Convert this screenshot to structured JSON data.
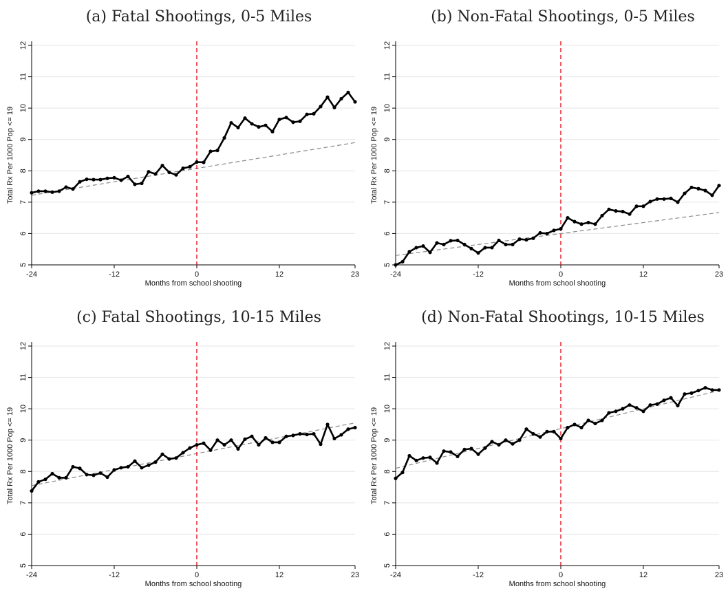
{
  "figure": {
    "xlabel": "Months from school shooting",
    "ylabel": "Total Rx Per 1000 Pop <= 19",
    "x_ticks": [
      -24,
      -12,
      0,
      12,
      23
    ],
    "y_ticks": [
      5,
      6,
      7,
      8,
      9,
      10,
      11,
      12
    ],
    "colors": {
      "series": "#000000",
      "trend": "#888888",
      "event_line": "#e8000b",
      "grid": "#e4e4e4"
    }
  },
  "chart_data": [
    {
      "type": "line",
      "title": "(a) Fatal Shootings, 0-5 Miles",
      "xlabel": "Months from school shooting",
      "ylabel": "Total Rx Per 1000 Pop <= 19",
      "xlim": [
        -24,
        23
      ],
      "ylim": [
        5,
        12
      ],
      "grid": true,
      "event_x": 0,
      "x": [
        -24,
        -23,
        -22,
        -21,
        -20,
        -19,
        -18,
        -17,
        -16,
        -15,
        -14,
        -13,
        -12,
        -11,
        -10,
        -9,
        -8,
        -7,
        -6,
        -5,
        -4,
        -3,
        -2,
        -1,
        0,
        1,
        2,
        3,
        4,
        5,
        6,
        7,
        8,
        9,
        10,
        11,
        12,
        13,
        14,
        15,
        16,
        17,
        18,
        19,
        20,
        21,
        22,
        23
      ],
      "series": [
        {
          "values": [
            7.3,
            7.35,
            7.35,
            7.32,
            7.35,
            7.48,
            7.42,
            7.65,
            7.73,
            7.72,
            7.72,
            7.76,
            7.78,
            7.7,
            7.82,
            7.57,
            7.6,
            7.97,
            7.9,
            8.17,
            7.95,
            7.87,
            8.08,
            8.13,
            8.28,
            8.27,
            8.62,
            8.65,
            9.05,
            9.53,
            9.38,
            9.68,
            9.5,
            9.4,
            9.45,
            9.25,
            9.64,
            9.7,
            9.55,
            9.58,
            9.8,
            9.82,
            10.05,
            10.35,
            10.02,
            10.3,
            10.5,
            10.2
          ]
        }
      ],
      "trend": {
        "x": [
          -24,
          23
        ],
        "y": [
          7.22,
          8.9
        ]
      }
    },
    {
      "type": "line",
      "title": "(b) Non-Fatal Shootings, 0-5 Miles",
      "xlabel": "Months from school shooting",
      "ylabel": "Total Rx Per 1000 Pop <= 19",
      "xlim": [
        -24,
        23
      ],
      "ylim": [
        5,
        12
      ],
      "grid": true,
      "event_x": 0,
      "x": [
        -24,
        -23,
        -22,
        -21,
        -20,
        -19,
        -18,
        -17,
        -16,
        -15,
        -14,
        -13,
        -12,
        -11,
        -10,
        -9,
        -8,
        -7,
        -6,
        -5,
        -4,
        -3,
        -2,
        -1,
        0,
        1,
        2,
        3,
        4,
        5,
        6,
        7,
        8,
        9,
        10,
        11,
        12,
        13,
        14,
        15,
        16,
        17,
        18,
        19,
        20,
        21,
        22,
        23
      ],
      "series": [
        {
          "values": [
            5.0,
            5.1,
            5.42,
            5.55,
            5.6,
            5.4,
            5.7,
            5.65,
            5.77,
            5.78,
            5.65,
            5.52,
            5.38,
            5.55,
            5.55,
            5.78,
            5.65,
            5.65,
            5.82,
            5.8,
            5.85,
            6.02,
            6.0,
            6.1,
            6.15,
            6.5,
            6.38,
            6.3,
            6.35,
            6.3,
            6.57,
            6.77,
            6.72,
            6.7,
            6.62,
            6.87,
            6.87,
            7.02,
            7.1,
            7.1,
            7.12,
            7.0,
            7.28,
            7.47,
            7.43,
            7.37,
            7.22,
            7.53
          ]
        }
      ],
      "trend": {
        "x": [
          -24,
          23
        ],
        "y": [
          5.3,
          6.67
        ]
      }
    },
    {
      "type": "line",
      "title": "(c) Fatal Shootings, 10-15 Miles",
      "xlabel": "Months from school shooting",
      "ylabel": "Total Rx Per 1000 Pop <= 19",
      "xlim": [
        -24,
        23
      ],
      "ylim": [
        5,
        12
      ],
      "grid": true,
      "event_x": 0,
      "x": [
        -24,
        -23,
        -22,
        -21,
        -20,
        -19,
        -18,
        -17,
        -16,
        -15,
        -14,
        -13,
        -12,
        -11,
        -10,
        -9,
        -8,
        -7,
        -6,
        -5,
        -4,
        -3,
        -2,
        -1,
        0,
        1,
        2,
        3,
        4,
        5,
        6,
        7,
        8,
        9,
        10,
        11,
        12,
        13,
        14,
        15,
        16,
        17,
        18,
        19,
        20,
        21,
        22,
        23
      ],
      "series": [
        {
          "values": [
            7.38,
            7.67,
            7.75,
            7.93,
            7.8,
            7.8,
            8.15,
            8.1,
            7.9,
            7.88,
            7.95,
            7.82,
            8.05,
            8.12,
            8.15,
            8.33,
            8.12,
            8.2,
            8.3,
            8.55,
            8.4,
            8.43,
            8.6,
            8.75,
            8.85,
            8.9,
            8.68,
            9.0,
            8.85,
            9.0,
            8.72,
            9.03,
            9.12,
            8.85,
            9.07,
            8.93,
            8.93,
            9.12,
            9.15,
            9.2,
            9.18,
            9.2,
            8.87,
            9.5,
            9.05,
            9.17,
            9.35,
            9.4
          ]
        }
      ],
      "trend": {
        "x": [
          -24,
          23
        ],
        "y": [
          7.55,
          9.55
        ]
      }
    },
    {
      "type": "line",
      "title": "(d) Non-Fatal Shootings, 10-15 Miles",
      "xlabel": "Months from school shooting",
      "ylabel": "Total Rx Per 1000 Pop <= 19",
      "xlim": [
        -24,
        23
      ],
      "ylim": [
        5,
        12
      ],
      "grid": true,
      "event_x": 0,
      "x": [
        -24,
        -23,
        -22,
        -21,
        -20,
        -19,
        -18,
        -17,
        -16,
        -15,
        -14,
        -13,
        -12,
        -11,
        -10,
        -9,
        -8,
        -7,
        -6,
        -5,
        -4,
        -3,
        -2,
        -1,
        0,
        1,
        2,
        3,
        4,
        5,
        6,
        7,
        8,
        9,
        10,
        11,
        12,
        13,
        14,
        15,
        16,
        17,
        18,
        19,
        20,
        21,
        22,
        23
      ],
      "series": [
        {
          "values": [
            7.78,
            7.97,
            8.5,
            8.35,
            8.43,
            8.45,
            8.27,
            8.65,
            8.62,
            8.48,
            8.7,
            8.73,
            8.55,
            8.75,
            8.95,
            8.85,
            9.0,
            8.88,
            9.0,
            9.35,
            9.2,
            9.1,
            9.27,
            9.27,
            9.05,
            9.4,
            9.5,
            9.4,
            9.63,
            9.53,
            9.63,
            9.87,
            9.92,
            10.0,
            10.12,
            10.03,
            9.92,
            10.12,
            10.15,
            10.27,
            10.35,
            10.1,
            10.47,
            10.5,
            10.58,
            10.67,
            10.6,
            10.6
          ]
        }
      ],
      "trend": {
        "x": [
          -24,
          23
        ],
        "y": [
          8.1,
          10.58
        ]
      }
    }
  ]
}
